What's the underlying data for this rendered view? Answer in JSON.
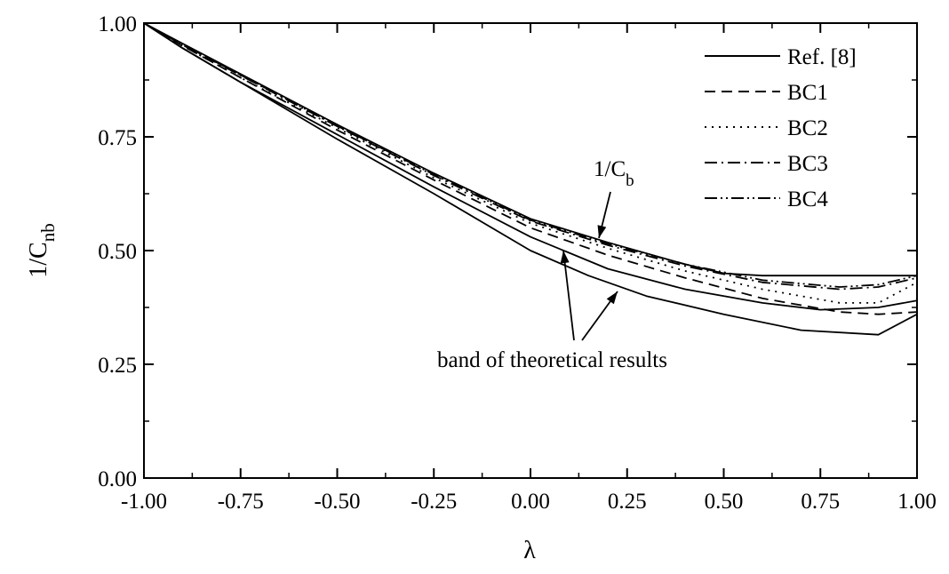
{
  "chart_data": {
    "type": "line",
    "xlabel": "λ",
    "ylabel": {
      "base": "1/C",
      "sub": "nb"
    },
    "xlim": [
      -1.0,
      1.0
    ],
    "ylim": [
      0.0,
      1.0
    ],
    "xticks": [
      "-1.00",
      "-0.75",
      "-0.50",
      "-0.25",
      "0.00",
      "0.25",
      "0.50",
      "0.75",
      "1.00"
    ],
    "yticks": [
      "0.00",
      "0.25",
      "0.50",
      "0.75",
      "1.00"
    ],
    "grid": false,
    "legend_position": "top-right",
    "series": [
      {
        "name": "Ref. [8]",
        "dash": "solid",
        "x": [
          -1.0,
          -0.9,
          -0.75,
          -0.5,
          -0.25,
          0.0,
          0.15,
          0.3,
          0.5,
          0.7,
          0.9,
          1.0
        ],
        "y": [
          1.0,
          0.945,
          0.87,
          0.745,
          0.625,
          0.5,
          0.445,
          0.4,
          0.36,
          0.325,
          0.315,
          0.36
        ]
      },
      {
        "name": "BC1",
        "dash": "dashed",
        "x": [
          -1.0,
          -0.9,
          -0.75,
          -0.5,
          -0.25,
          0.0,
          0.2,
          0.4,
          0.6,
          0.8,
          0.9,
          1.0
        ],
        "y": [
          1.0,
          0.95,
          0.88,
          0.765,
          0.655,
          0.55,
          0.49,
          0.44,
          0.395,
          0.365,
          0.36,
          0.365
        ]
      },
      {
        "name": "BC2",
        "dash": "dotted",
        "x": [
          -1.0,
          -0.9,
          -0.75,
          -0.5,
          -0.25,
          0.0,
          0.2,
          0.4,
          0.6,
          0.8,
          0.9,
          1.0
        ],
        "y": [
          1.0,
          0.95,
          0.88,
          0.77,
          0.66,
          0.56,
          0.505,
          0.455,
          0.415,
          0.385,
          0.385,
          0.43
        ]
      },
      {
        "name": "BC3",
        "dash": "dashdot",
        "x": [
          -1.0,
          -0.9,
          -0.75,
          -0.5,
          -0.25,
          0.0,
          0.2,
          0.4,
          0.6,
          0.8,
          0.9,
          1.0
        ],
        "y": [
          1.0,
          0.952,
          0.885,
          0.773,
          0.665,
          0.565,
          0.512,
          0.466,
          0.43,
          0.415,
          0.42,
          0.44
        ]
      },
      {
        "name": "BC4",
        "dash": "dashdotdot",
        "x": [
          -1.0,
          -0.9,
          -0.75,
          -0.5,
          -0.25,
          0.0,
          0.2,
          0.4,
          0.6,
          0.8,
          0.9,
          1.0
        ],
        "y": [
          1.0,
          0.953,
          0.886,
          0.774,
          0.667,
          0.567,
          0.515,
          0.47,
          0.435,
          0.42,
          0.425,
          0.445
        ]
      },
      {
        "name": "",
        "dash": "solid",
        "x": [
          -1.0,
          -0.9,
          -0.75,
          -0.5,
          -0.25,
          0.0,
          0.2,
          0.4,
          0.6,
          0.75,
          0.9,
          1.0
        ],
        "y": [
          1.0,
          0.945,
          0.87,
          0.755,
          0.64,
          0.53,
          0.46,
          0.415,
          0.385,
          0.37,
          0.375,
          0.39
        ]
      },
      {
        "name": "",
        "dash": "solid",
        "x": [
          -1.0,
          -0.9,
          -0.75,
          -0.5,
          -0.25,
          0.0,
          0.2,
          0.4,
          0.5,
          0.6,
          0.75,
          0.9,
          1.0
        ],
        "y": [
          1.0,
          0.955,
          0.888,
          0.777,
          0.67,
          0.57,
          0.518,
          0.47,
          0.45,
          0.445,
          0.445,
          0.445,
          0.445
        ]
      }
    ],
    "annotations": [
      {
        "text": "1/C",
        "sub": "b"
      },
      {
        "text": "band of theoretical results"
      }
    ]
  }
}
